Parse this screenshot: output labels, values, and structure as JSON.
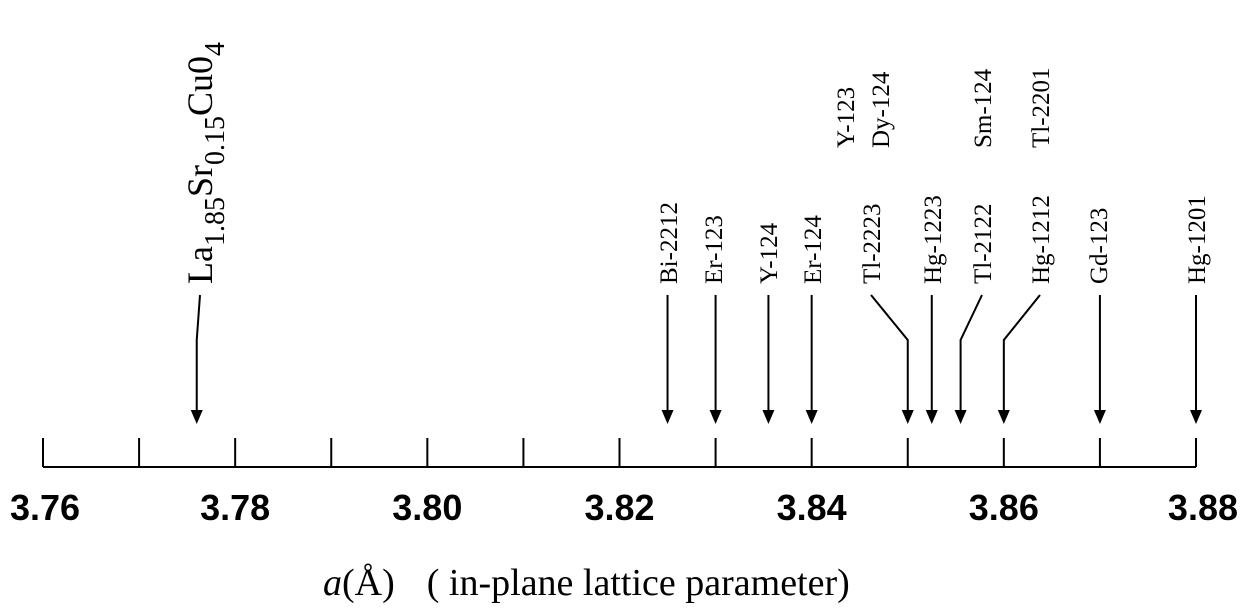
{
  "chart_data": {
    "type": "number-line",
    "axis": {
      "min": 3.76,
      "max": 3.88,
      "minor_step": 0.01,
      "tick_labels": [
        "3.76",
        "3.78",
        "3.80",
        "3.82",
        "3.84",
        "3.86",
        "3.88"
      ],
      "title_variable": "a",
      "title_unit": "(Å)",
      "title_description": "( in-plane lattice parameter)"
    },
    "compounds": [
      {
        "label": "La1.85Sr0.15Cu04",
        "value": 3.776,
        "label_parts": {
          "base1": "La",
          "sub1": "1.85",
          "base2": "Sr",
          "sub2": "0.15",
          "base3": "Cu0",
          "sub3": "4"
        }
      },
      {
        "label": "Bi-2212",
        "value": 3.825
      },
      {
        "label": "Er-123",
        "value": 3.83
      },
      {
        "label": "Y-124",
        "value": 3.8355
      },
      {
        "label": "Er-124",
        "value": 3.84
      },
      {
        "label": "Tl-2223",
        "value": 3.85,
        "extra_labels": [
          "Y-123",
          "Dy-124"
        ]
      },
      {
        "label": "Hg-1223",
        "value": 3.8525
      },
      {
        "label": "Tl-2122",
        "value": 3.8555,
        "extra_labels": [
          "Sm-124"
        ]
      },
      {
        "label": "Hg-1212",
        "value": 3.86,
        "extra_labels": [
          "Tl-2201"
        ]
      },
      {
        "label": "Gd-123",
        "value": 3.87
      },
      {
        "label": "Hg-1201",
        "value": 3.88
      }
    ]
  }
}
